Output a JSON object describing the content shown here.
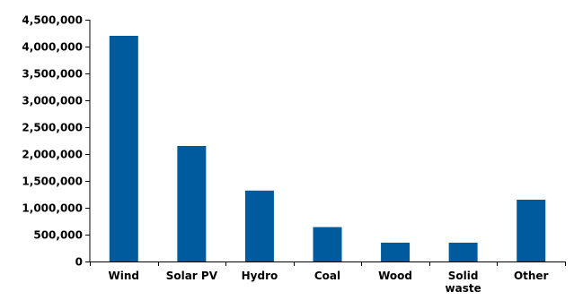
{
  "chart_data": {
    "type": "bar",
    "title": "",
    "xlabel": "",
    "ylabel": "",
    "categories": [
      "Wind",
      "Solar PV",
      "Hydro",
      "Coal",
      "Wood",
      "Solid waste",
      "Other"
    ],
    "category_lines": [
      [
        "Wind"
      ],
      [
        "Solar PV"
      ],
      [
        "Hydro"
      ],
      [
        "Coal"
      ],
      [
        "Wood"
      ],
      [
        "Solid",
        "waste"
      ],
      [
        "Other"
      ]
    ],
    "series": [
      {
        "values": [
          4200000,
          2150000,
          1320000,
          640000,
          350000,
          350000,
          1150000
        ],
        "color": "#005A9E"
      }
    ],
    "ylim": [
      0,
      4500000
    ],
    "yticks": [
      0,
      500000,
      1000000,
      1500000,
      2000000,
      2500000,
      3000000,
      3500000,
      4000000,
      4500000
    ],
    "ytick_labels": [
      "0",
      "500,000",
      "1,000,000",
      "1,500,000",
      "2,000,000",
      "2,500,000",
      "3,000,000",
      "3,500,000",
      "4,000,000",
      "4,500,000"
    ],
    "grid": false,
    "legend": "none"
  }
}
